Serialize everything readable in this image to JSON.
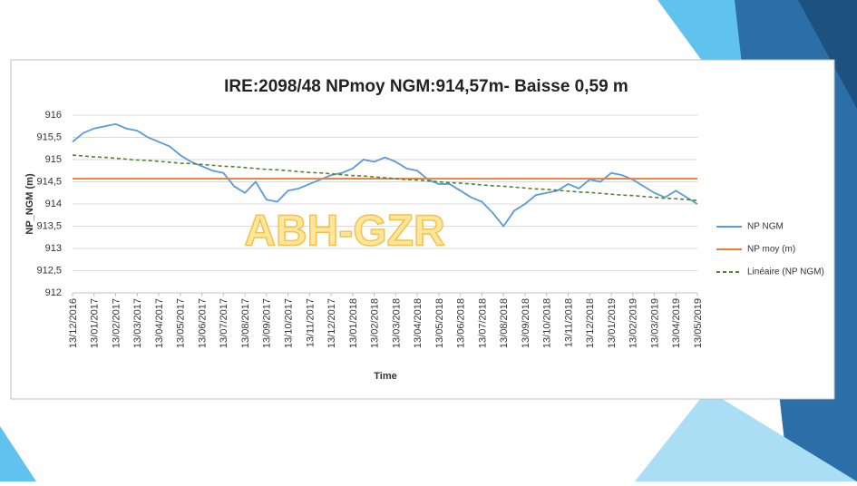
{
  "chart_data": {
    "type": "line",
    "title": "IRE:2098/48 NPmoy NGM:914,57m- Baisse 0,59 m",
    "x_label": "Time",
    "y_label": "NP_NGM (m)",
    "watermark": "ABH-GZR",
    "categories": [
      "13/12/2016",
      null,
      "13/01/2017",
      null,
      "13/02/2017",
      null,
      "13/03/2017",
      null,
      "13/04/2017",
      null,
      "13/05/2017",
      null,
      "13/06/2017",
      null,
      "13/07/2017",
      null,
      "13/08/2017",
      null,
      "13/09/2017",
      null,
      "13/10/2017",
      null,
      "13/11/2017",
      null,
      "13/12/2017",
      null,
      "13/01/2018",
      null,
      "13/02/2018",
      null,
      "13/03/2018",
      null,
      "13/04/2018",
      null,
      "13/05/2018",
      null,
      "13/06/2018",
      null,
      "13/07/2018",
      null,
      "13/08/2018",
      null,
      "13/09/2018",
      null,
      "13/10/2018",
      null,
      "13/11/2018",
      null,
      "13/12/2018",
      null,
      "13/01/2019",
      null,
      "13/02/2019",
      null,
      "13/03/2019",
      null,
      "13/04/2019",
      null,
      "13/05/2019"
    ],
    "series": [
      {
        "name": "NP NGM",
        "color": "#5b9bd5",
        "values": [
          915.4,
          915.6,
          915.7,
          915.75,
          915.8,
          915.7,
          915.65,
          915.5,
          915.4,
          915.3,
          915.1,
          914.95,
          914.85,
          914.75,
          914.7,
          914.4,
          914.25,
          914.5,
          914.1,
          914.05,
          914.3,
          914.35,
          914.45,
          914.55,
          914.65,
          914.7,
          914.8,
          915.0,
          914.95,
          915.05,
          914.95,
          914.8,
          914.75,
          914.55,
          914.45,
          914.45,
          914.3,
          914.15,
          914.05,
          913.8,
          913.5,
          913.85,
          914.0,
          914.2,
          914.25,
          914.3,
          914.45,
          914.35,
          914.55,
          914.5,
          914.7,
          914.65,
          914.55,
          914.4,
          914.25,
          914.15,
          914.3,
          914.15,
          914.0
        ]
      },
      {
        "name": "NP moy (m)",
        "color": "#ed7d31",
        "values": [
          914.57,
          914.57,
          914.57,
          914.57,
          914.57,
          914.57,
          914.57,
          914.57,
          914.57,
          914.57,
          914.57,
          914.57,
          914.57,
          914.57,
          914.57,
          914.57,
          914.57,
          914.57,
          914.57,
          914.57,
          914.57,
          914.57,
          914.57,
          914.57,
          914.57,
          914.57,
          914.57,
          914.57,
          914.57,
          914.57,
          914.57,
          914.57,
          914.57,
          914.57,
          914.57,
          914.57,
          914.57,
          914.57,
          914.57,
          914.57,
          914.57,
          914.57,
          914.57,
          914.57,
          914.57,
          914.57,
          914.57,
          914.57,
          914.57,
          914.57,
          914.57,
          914.57,
          914.57,
          914.57,
          914.57,
          914.57,
          914.57,
          914.57,
          914.57
        ]
      },
      {
        "name": "Linéaire (NP NGM)",
        "color": "#548235",
        "dashed": true,
        "values": [
          915.1,
          915.08,
          915.06,
          915.05,
          915.03,
          915.01,
          914.99,
          914.98,
          914.96,
          914.94,
          914.92,
          914.91,
          914.89,
          914.87,
          914.85,
          914.84,
          914.82,
          914.8,
          914.78,
          914.77,
          914.75,
          914.73,
          914.71,
          914.7,
          914.68,
          914.66,
          914.64,
          914.63,
          914.61,
          914.59,
          914.57,
          914.55,
          914.54,
          914.52,
          914.5,
          914.48,
          914.47,
          914.45,
          914.43,
          914.41,
          914.4,
          914.38,
          914.36,
          914.34,
          914.33,
          914.31,
          914.29,
          914.27,
          914.26,
          914.24,
          914.22,
          914.2,
          914.19,
          914.17,
          914.15,
          914.13,
          914.12,
          914.1,
          914.08
        ]
      }
    ],
    "ylim": [
      912,
      916
    ],
    "yticks": [
      912,
      {
        "value": 912.5,
        "label": "912,5"
      },
      913,
      {
        "value": 913.5,
        "label": "913,5"
      },
      914,
      {
        "value": 914.5,
        "label": "914,5"
      },
      915,
      {
        "value": 915.5,
        "label": "915,5"
      },
      916
    ],
    "grid": true,
    "legend": "right"
  }
}
